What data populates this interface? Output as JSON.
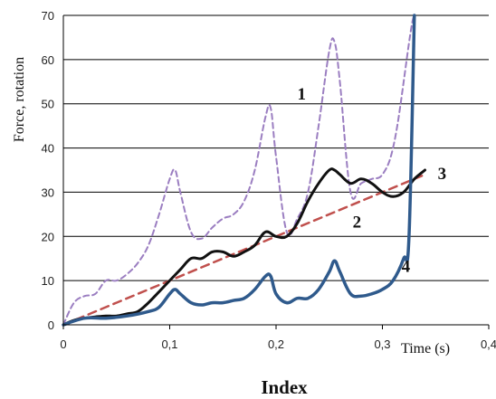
{
  "chart_data": {
    "type": "line",
    "ylabel": "Force, rotation",
    "xlabel": "Time (s)",
    "caption": "Index",
    "xlim": [
      0,
      0.4
    ],
    "ylim": [
      0,
      70
    ],
    "x_ticks": [
      "0",
      "0,1",
      "0,2",
      "0,3",
      "0,4"
    ],
    "y_ticks": [
      "0",
      "10",
      "20",
      "30",
      "40",
      "50",
      "60",
      "70"
    ],
    "grid": "horizontal",
    "series": [
      {
        "name": "1",
        "color": "#9b7ec1",
        "style": "dashed",
        "x": [
          0,
          0.01,
          0.02,
          0.03,
          0.04,
          0.05,
          0.06,
          0.07,
          0.08,
          0.09,
          0.1,
          0.105,
          0.11,
          0.12,
          0.13,
          0.14,
          0.15,
          0.16,
          0.17,
          0.18,
          0.19,
          0.195,
          0.2,
          0.21,
          0.22,
          0.23,
          0.24,
          0.25,
          0.255,
          0.26,
          0.27,
          0.28,
          0.29,
          0.3,
          0.31,
          0.32,
          0.33
        ],
        "y": [
          0,
          5,
          6.5,
          7,
          10,
          10,
          11.5,
          14,
          18,
          25,
          33,
          35,
          30,
          21,
          19.5,
          22,
          24,
          25,
          28,
          35,
          47,
          49,
          38,
          21,
          24,
          30,
          45,
          62,
          64,
          55,
          30,
          32,
          33,
          34,
          40,
          55,
          75
        ]
      },
      {
        "name": "2",
        "color": "#c0504d",
        "style": "dashed",
        "x": [
          0,
          0.34
        ],
        "y": [
          0,
          34
        ]
      },
      {
        "name": "3",
        "color": "#111111",
        "style": "solid",
        "x": [
          0,
          0.01,
          0.02,
          0.03,
          0.04,
          0.05,
          0.06,
          0.07,
          0.08,
          0.09,
          0.1,
          0.11,
          0.12,
          0.13,
          0.14,
          0.15,
          0.16,
          0.17,
          0.18,
          0.19,
          0.2,
          0.21,
          0.22,
          0.23,
          0.24,
          0.25,
          0.255,
          0.26,
          0.27,
          0.28,
          0.29,
          0.3,
          0.31,
          0.32,
          0.33,
          0.34
        ],
        "y": [
          0,
          1,
          1.5,
          1.8,
          2,
          2,
          2.5,
          3,
          5,
          7.5,
          10,
          12.5,
          15,
          15,
          16.5,
          16.5,
          15.5,
          16.5,
          18,
          21,
          20,
          20,
          23,
          28,
          32,
          35,
          35,
          34,
          32,
          33,
          32,
          30,
          29,
          30,
          33,
          35
        ]
      },
      {
        "name": "4",
        "color": "#2f5a8c",
        "style": "solid",
        "x": [
          0,
          0.02,
          0.04,
          0.06,
          0.08,
          0.09,
          0.1,
          0.105,
          0.11,
          0.12,
          0.13,
          0.14,
          0.15,
          0.16,
          0.17,
          0.18,
          0.19,
          0.195,
          0.2,
          0.21,
          0.22,
          0.23,
          0.24,
          0.25,
          0.255,
          0.26,
          0.27,
          0.28,
          0.29,
          0.3,
          0.31,
          0.32,
          0.325,
          0.33
        ],
        "y": [
          0,
          1.5,
          1.5,
          2,
          3,
          4,
          7,
          8,
          7,
          5,
          4.5,
          5,
          5,
          5.5,
          6,
          8,
          11,
          11,
          7,
          5,
          6,
          6,
          8,
          12,
          14.5,
          12,
          7,
          6.5,
          7,
          8,
          10,
          15,
          20,
          70
        ]
      }
    ]
  }
}
